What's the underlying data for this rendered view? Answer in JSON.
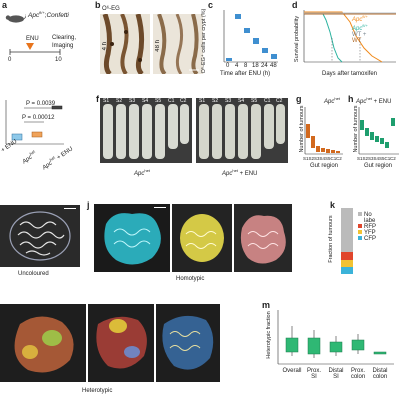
{
  "panel_a": {
    "label": "a",
    "genotype": "Apc",
    "sup1": "fl/+",
    "sep": ";",
    "sup2": "Confetti",
    "sup3": "R",
    "treatment": "ENU",
    "timeline_start": "0",
    "timeline_end": "10",
    "steps": [
      "Clearing,",
      "Imaging"
    ]
  },
  "panel_b": {
    "label": "b",
    "title": "O⁶-EG",
    "time_left": "4 h",
    "time_right": "48 h"
  },
  "panel_c": {
    "label": "c",
    "ylabel": "O⁶-EG⁺ cells per crypt (%)",
    "xlabel": "Time after ENU (h)",
    "x_ticks": [
      "0",
      "4",
      "8",
      "18",
      "24",
      "48"
    ]
  },
  "panel_d": {
    "label": "d",
    "ylabel": "Survival probability",
    "xlabel": "Days after tamoxifen",
    "legend": [
      "Apc",
      "Apc",
      "WT +",
      "WT"
    ],
    "legend_sup": [
      "fl/+",
      "fl/+",
      "",
      ""
    ],
    "series_colors": [
      "#f08a1c",
      "#2bb3a0",
      "#b8c3cc",
      "#b06a2a"
    ]
  },
  "panel_e": {
    "p1": "P = 0.0039",
    "p2": "P = 0.00012",
    "x_labels": [
      "T + ENU",
      "Apc",
      "Apc"
    ],
    "x_sup": [
      "",
      "het",
      "het"
    ],
    "x_suffix": [
      "",
      "",
      " + ENU"
    ]
  },
  "panel_f": {
    "label": "f",
    "regions_left": [
      "S1",
      "S2",
      "S3",
      "S4",
      "S5",
      "C1",
      "C2"
    ],
    "regions_right": [
      "S1",
      "S2",
      "S3",
      "S4",
      "S5",
      "C1",
      "C2"
    ],
    "caption_left": "Apc",
    "caption_left_sup": "het",
    "caption_right": "Apc",
    "caption_right_sup": "het",
    "caption_right_suffix": " + ENU"
  },
  "panel_g": {
    "label": "g",
    "title": "Apc",
    "title_sup": "het",
    "ylabel": "Number of tumours",
    "xlabel": "Gut region",
    "categories": [
      "S1",
      "S2",
      "S3",
      "S4",
      "S5",
      "C1",
      "C2"
    ],
    "color": "#d2691e"
  },
  "panel_h": {
    "label": "h",
    "title": "Apc",
    "title_sup": "het",
    "title_suffix": " + ENU",
    "ylabel": "Number of tumours",
    "xlabel": "Gut region",
    "categories": [
      "S1",
      "S2",
      "S3",
      "S4",
      "S5",
      "C1",
      "C2"
    ],
    "color": "#1e9e6e"
  },
  "panel_i": {
    "caption": "Uncoloured"
  },
  "panel_j": {
    "label": "j",
    "caption": "Homotypic"
  },
  "panel_k": {
    "label": "k",
    "ylabel": "Fraction of tumours",
    "legend": [
      "No",
      "labe",
      "RFP",
      "YFP",
      "CFP"
    ],
    "colors": [
      "#bbbbbb",
      "#e0452c",
      "#f1c232",
      "#3bb3d9"
    ]
  },
  "panel_l": {
    "caption": "Heterotypic"
  },
  "panel_m": {
    "label": "m",
    "ylabel": "Heterotypic fraction",
    "categories": [
      "Overall",
      "Prox.\nSI",
      "Distal\nSI",
      "Prox.\ncolon",
      "Distal\ncolon"
    ],
    "cat_line1": [
      "Overall",
      "Prox.",
      "Distal",
      "Prox.",
      "Distal"
    ],
    "cat_line2": [
      "",
      "SI",
      "SI",
      "colon",
      "colon"
    ],
    "color": "#2fb874"
  }
}
